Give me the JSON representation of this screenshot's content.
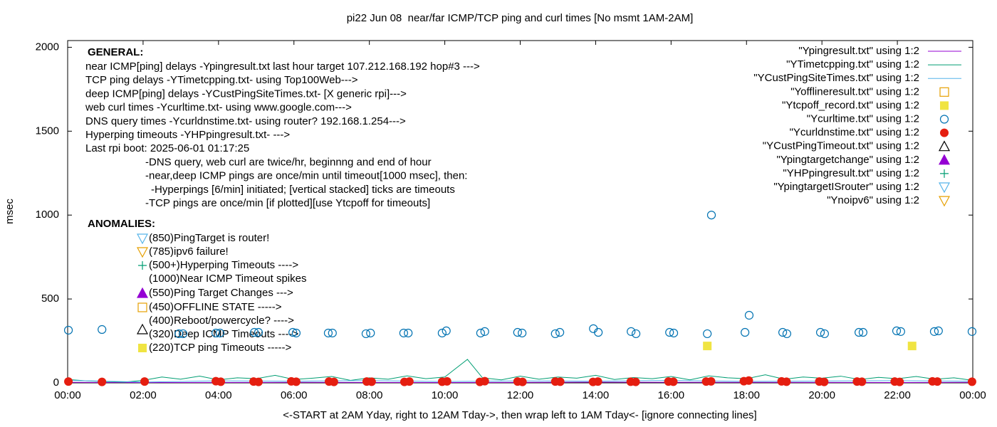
{
  "chart_data": {
    "type": "scatter",
    "title": "pi22 Jun 08  near/far ICMP/TCP ping and curl times [No msmt 1AM-2AM]",
    "xlabel": "<-START at 2AM Yday, right to 12AM Tday->, then wrap left to 1AM Tday<- [ignore connecting lines]",
    "ylabel": "msec",
    "xlim": [
      0,
      24
    ],
    "ylim": [
      0,
      2040
    ],
    "xticks": [
      {
        "value": 0,
        "label": "00:00"
      },
      {
        "value": 2,
        "label": "02:00"
      },
      {
        "value": 4,
        "label": "04:00"
      },
      {
        "value": 6,
        "label": "06:00"
      },
      {
        "value": 8,
        "label": "08:00"
      },
      {
        "value": 10,
        "label": "10:00"
      },
      {
        "value": 12,
        "label": "12:00"
      },
      {
        "value": 14,
        "label": "14:00"
      },
      {
        "value": 16,
        "label": "16:00"
      },
      {
        "value": 18,
        "label": "18:00"
      },
      {
        "value": 20,
        "label": "20:00"
      },
      {
        "value": 22,
        "label": "22:00"
      },
      {
        "value": 24,
        "label": "00:00"
      }
    ],
    "yticks": [
      0,
      500,
      1000,
      1500,
      2000
    ],
    "grid": false,
    "legend": "upper right",
    "series": [
      {
        "name": "\"Ypingresult.txt\" using 1:2",
        "color": "#9400d3",
        "marker": "line",
        "x": [
          0,
          2,
          6,
          10,
          14,
          18,
          22,
          24
        ],
        "values": [
          3,
          2,
          3,
          2,
          4,
          3,
          2,
          3
        ]
      },
      {
        "name": "\"YTimetcpping.txt\" using 1:2",
        "color": "#009e73",
        "marker": "line",
        "x": [
          0,
          0.5,
          1,
          1.5,
          2,
          2.5,
          3,
          3.5,
          4,
          4.5,
          5,
          5.5,
          6,
          6.5,
          7,
          7.5,
          8,
          8.5,
          9,
          9.5,
          10,
          10.6,
          11,
          11.5,
          12,
          12.5,
          13,
          13.5,
          14,
          14.5,
          15,
          15.5,
          16,
          16.5,
          17,
          17.5,
          18,
          18.5,
          19,
          19.5,
          20,
          20.5,
          21,
          21.5,
          22,
          22.5,
          23,
          23.5,
          24
        ],
        "values": [
          20,
          12,
          8,
          5,
          15,
          35,
          22,
          40,
          18,
          30,
          25,
          45,
          20,
          28,
          38,
          15,
          30,
          22,
          42,
          25,
          35,
          140,
          30,
          18,
          40,
          22,
          35,
          28,
          45,
          20,
          32,
          25,
          38,
          18,
          42,
          30,
          25,
          48,
          22,
          35,
          28,
          40,
          20,
          33,
          25,
          38,
          22,
          30,
          15
        ]
      },
      {
        "name": "\"YCustPingSiteTimes.txt\" using 1:2",
        "color": "#56b4e9",
        "marker": "line",
        "x": [
          0,
          2,
          4,
          6,
          8,
          10,
          12,
          14,
          16,
          18,
          20,
          22,
          24
        ],
        "values": [
          15,
          5,
          12,
          10,
          14,
          8,
          12,
          10,
          15,
          9,
          11,
          13,
          10
        ]
      },
      {
        "name": "\"Yofflineresult.txt\" using 1:2",
        "color": "#e69f00",
        "marker": "square-open",
        "x": [],
        "values": []
      },
      {
        "name": "\"Ytcpoff_record.txt\" using 1:2",
        "color": "#f0e442",
        "marker": "square",
        "x": [
          16.96,
          22.39
        ],
        "values": [
          220,
          220
        ]
      },
      {
        "name": "\"Ycurltime.txt\" using 1:2",
        "color": "#0072b2",
        "marker": "circle-open",
        "x": [
          0.02,
          0.91,
          2.95,
          3.06,
          3.93,
          4.04,
          4.95,
          5.06,
          5.97,
          6.06,
          6.91,
          7.02,
          7.91,
          8.03,
          8.91,
          9.03,
          9.93,
          10.04,
          10.95,
          11.06,
          11.93,
          12.05,
          12.93,
          13.05,
          13.94,
          14.07,
          14.94,
          15.07,
          15.96,
          16.07,
          16.96,
          17.07,
          17.96,
          18.07,
          18.96,
          19.07,
          19.96,
          20.07,
          20.98,
          21.09,
          21.98,
          22.09,
          22.98,
          23.09,
          23.98
        ],
        "values": [
          314,
          318,
          293,
          293,
          297,
          297,
          301,
          301,
          301,
          297,
          297,
          297,
          293,
          297,
          297,
          297,
          297,
          310,
          297,
          306,
          301,
          297,
          293,
          301,
          323,
          301,
          306,
          293,
          301,
          297,
          293,
          1000,
          301,
          403,
          301,
          293,
          301,
          293,
          301,
          301,
          310,
          306,
          306,
          310,
          306
        ]
      },
      {
        "name": "\"Ycurldnstime.txt\" using 1:2",
        "color": "#e51e10",
        "marker": "circle",
        "x": [
          0.02,
          0.91,
          2.04,
          3.93,
          4.06,
          4.93,
          5.06,
          5.93,
          6.06,
          6.93,
          7.06,
          7.93,
          8.06,
          8.93,
          9.06,
          9.93,
          10.06,
          10.93,
          11.06,
          11.93,
          12.06,
          12.93,
          13.06,
          13.93,
          14.06,
          14.93,
          15.06,
          15.93,
          16.06,
          16.93,
          17.06,
          17.93,
          18.06,
          18.93,
          19.06,
          19.93,
          20.06,
          20.93,
          21.06,
          21.93,
          22.06,
          22.93,
          23.06,
          23.98
        ],
        "values": [
          8,
          6,
          8,
          10,
          7,
          8,
          6,
          9,
          7,
          8,
          6,
          8,
          7,
          6,
          8,
          7,
          9,
          6,
          10,
          8,
          6,
          8,
          7,
          6,
          8,
          7,
          6,
          8,
          7,
          8,
          9,
          10,
          14,
          9,
          7,
          8,
          6,
          8,
          7,
          8,
          6,
          9,
          8,
          7
        ]
      },
      {
        "name": "\"YCustPingTimeout.txt\" using 1:2",
        "color": "#000000",
        "marker": "triangle-open",
        "x": [],
        "values": []
      },
      {
        "name": "\"Ypingtargetchange\" using 1:2",
        "color": "#9400d3",
        "marker": "triangle",
        "x": [],
        "values": []
      },
      {
        "name": "\"YHPpingresult.txt\" using 1:2",
        "color": "#009e73",
        "marker": "plus",
        "x": [],
        "values": []
      },
      {
        "name": "\"YpingtargetISrouter\" using 1:2",
        "color": "#56b4e9",
        "marker": "triangle-down-open",
        "x": [],
        "values": []
      },
      {
        "name": "\"Ynoipv6\" using 1:2",
        "color": "#e69f00",
        "marker": "triangle-down-open",
        "x": [],
        "values": []
      }
    ],
    "annotations": {
      "general_heading": "GENERAL:",
      "general": [
        "near ICMP[ping] delays -Ypingresult.txt last hour target 107.212.168.192 hop#3 --->",
        "TCP ping delays -YTimetcpping.txt- using Top100Web--->",
        "deep ICMP[ping] delays -YCustPingSiteTimes.txt- [X generic rpi]--->",
        "web curl times -Ycurltime.txt- using www.google.com--->",
        "DNS query times -Ycurldnstime.txt- using router? 192.168.1.254--->",
        "Hyperping timeouts -YHPpingresult.txt- --->",
        "Last rpi boot: 2025-06-01 01:17:25",
        "-DNS query, web curl are twice/hr, beginnng and end of hour",
        "-near,deep ICMP pings are once/min until timeout[1000 msec], then:",
        "-Hyperpings [6/min] initiated; [vertical stacked] ticks are timeouts",
        "-TCP pings are once/min [if plotted][use Ytcpoff for timeouts]"
      ],
      "anomalies_heading": "ANOMALIES:",
      "anomalies": [
        "(850)PingTarget is router!",
        "(785)ipv6 failure!",
        "(500+)Hyperping Timeouts ---->",
        "(1000)Near ICMP Timeout spikes",
        "(550)Ping Target Changes --->",
        "(450)OFFLINE STATE ----->",
        "(400)Reboot/powercycle? ---->",
        "(320)Deep ICMP Timeouts ---->",
        "(220)TCP ping Timeouts ----->"
      ]
    }
  }
}
